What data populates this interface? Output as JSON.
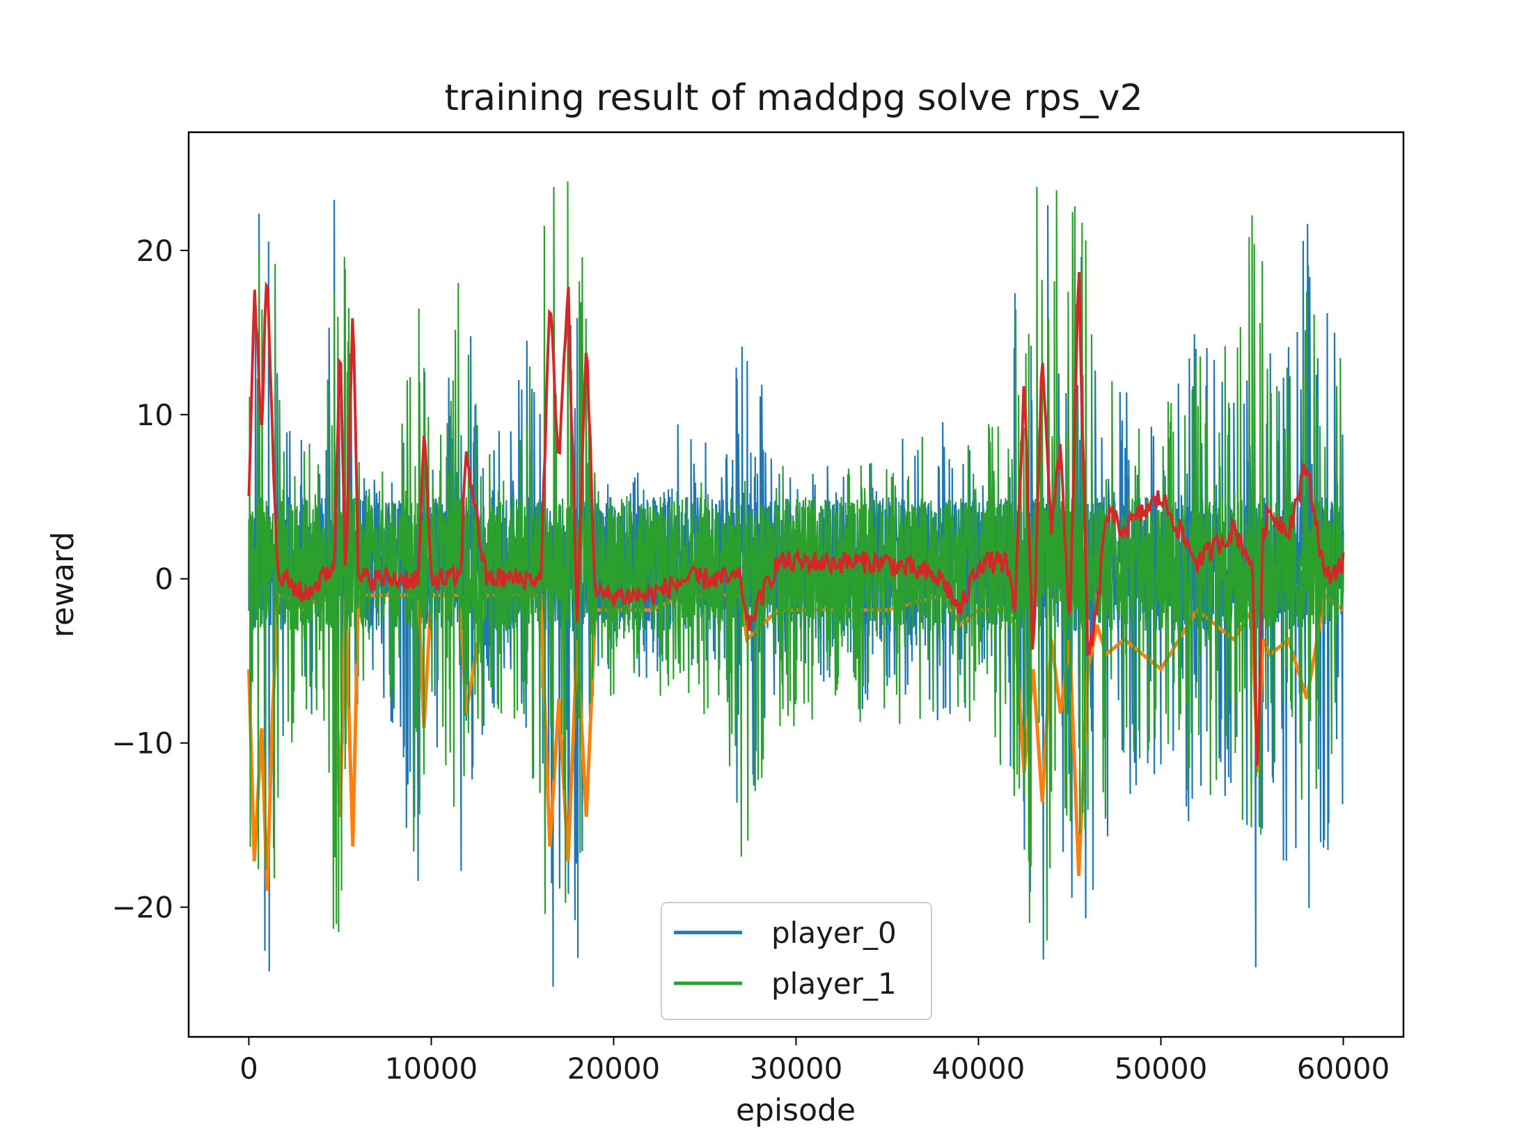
{
  "chart_data": {
    "type": "line",
    "title": "training result of maddpg solve rps_v2",
    "xlabel": "episode",
    "ylabel": "reward",
    "xlim": [
      -3300,
      63300
    ],
    "ylim": [
      -27.9,
      27.2
    ],
    "x_ticks": [
      0,
      10000,
      20000,
      30000,
      40000,
      50000,
      60000
    ],
    "x_tick_labels": [
      "0",
      "10000",
      "20000",
      "30000",
      "40000",
      "50000",
      "60000"
    ],
    "y_ticks": [
      -20,
      -10,
      0,
      10,
      20
    ],
    "y_tick_labels": [
      "−20",
      "−10",
      "0",
      "10",
      "20"
    ],
    "grid": false,
    "legend": {
      "placement": "lower-center",
      "entries": [
        "player_0",
        "player_1"
      ]
    },
    "colors": {
      "player_0": "#1f77b4",
      "player_1": "#2ca02c",
      "smoothed_0": "#ff7f0e",
      "smoothed_1": "#d62728"
    },
    "series": [
      {
        "name": "player_0",
        "note_x": "episode",
        "x": [
          0,
          500,
          1000,
          1500,
          2000,
          3000,
          4000,
          4700,
          5200,
          5800,
          6500,
          8000,
          9300,
          10000,
          11600,
          13000,
          15000,
          16500,
          17200,
          18000,
          19000,
          21000,
          24000,
          26000,
          27000,
          29000,
          32000,
          35000,
          38000,
          40000,
          41500,
          42500,
          43500,
          44500,
          45500,
          46500,
          48000,
          50000,
          52000,
          54000,
          55300,
          56000,
          58000,
          60000
        ],
        "min": [
          -25,
          -25,
          -24,
          -24,
          -6,
          -8,
          -9,
          -25,
          -23,
          -9,
          -6,
          -11,
          -20,
          -9,
          -20,
          -8,
          -9,
          -25,
          -25,
          -25,
          -6,
          -6,
          -7,
          -6,
          -18,
          -8,
          -8,
          -8,
          -9,
          -8,
          -9,
          -25,
          -25,
          -25,
          -25,
          -19,
          -14,
          -12,
          -16,
          -14,
          -25,
          -15,
          -24,
          -14
        ],
        "max": [
          25,
          25,
          25,
          24,
          11,
          9,
          9,
          25,
          24,
          8,
          6,
          7,
          20,
          8,
          20,
          7,
          13,
          25,
          25,
          25,
          6,
          6,
          11,
          6,
          18,
          7,
          7,
          8,
          10,
          8,
          12,
          25,
          25,
          25,
          25,
          14,
          12,
          10,
          16,
          14,
          25,
          15,
          24,
          14
        ]
      },
      {
        "name": "player_1",
        "note_x": "episode",
        "x": [
          0,
          500,
          1000,
          1500,
          2000,
          3000,
          4000,
          4700,
          5200,
          5800,
          6500,
          8000,
          9300,
          10000,
          11600,
          13000,
          15000,
          16500,
          17200,
          18000,
          19000,
          21000,
          24000,
          26000,
          27000,
          29000,
          32000,
          35000,
          38000,
          40000,
          41500,
          42500,
          43500,
          44500,
          45500,
          46500,
          48000,
          50000,
          52000,
          54000,
          55300,
          56000,
          58000,
          60000
        ],
        "min": [
          -23,
          -23,
          -22,
          -21,
          -11,
          -9,
          -9,
          -25,
          -22,
          -9,
          -6,
          -9,
          -19,
          -8,
          -18,
          -8,
          -9,
          -23,
          -21,
          -20,
          -7,
          -8,
          -9,
          -8,
          -18,
          -9,
          -9,
          -9,
          -10,
          -9,
          -12,
          -23,
          -22,
          -24,
          -22,
          -16,
          -12,
          -10,
          -14,
          -12,
          -23,
          -14,
          -16,
          -10
        ],
        "max": [
          25,
          25,
          25,
          24,
          11,
          9,
          9,
          25,
          24,
          8,
          6,
          7,
          20,
          8,
          20,
          7,
          13,
          25,
          25,
          25,
          6,
          6,
          7,
          6,
          7,
          7,
          7,
          8,
          10,
          8,
          12,
          25,
          25,
          25,
          25,
          14,
          12,
          10,
          16,
          14,
          25,
          15,
          24,
          14
        ]
      },
      {
        "note": "smoothed curve (no legend entry)",
        "x": [
          0,
          300,
          700,
          1000,
          1300,
          1600,
          2000,
          3000,
          4000,
          4700,
          5000,
          5300,
          5700,
          6000,
          7000,
          8000,
          9300,
          9600,
          10000,
          11000,
          11600,
          11900,
          13000,
          15000,
          16000,
          16500,
          17000,
          17500,
          18000,
          18500,
          19000,
          20000,
          22000,
          24000,
          26000,
          27000,
          27300,
          29000,
          32000,
          35000,
          38000,
          39000,
          40000,
          41500,
          42000,
          42500,
          43000,
          43500,
          44000,
          44500,
          45000,
          45500,
          46000,
          46500,
          47000,
          48000,
          50000,
          52000,
          54000,
          55000,
          55300,
          55600,
          56000,
          57000,
          58000,
          59000,
          60000
        ],
        "y": [
          5,
          18,
          9,
          20,
          8,
          0,
          0,
          -1,
          0,
          1,
          15,
          0,
          17,
          0,
          0,
          0,
          0,
          9,
          0,
          0,
          0,
          8,
          0,
          0,
          0,
          17,
          7,
          18,
          -3,
          15,
          -1,
          -1,
          -1,
          0,
          0,
          0,
          -3,
          1,
          1,
          1,
          0,
          -2,
          1,
          1,
          -2,
          12,
          -5,
          14,
          3,
          8,
          -3,
          19,
          -5,
          -2,
          4,
          3,
          5,
          1,
          3,
          1,
          -12,
          3,
          4,
          3,
          7,
          0,
          1
        ]
      }
    ]
  }
}
